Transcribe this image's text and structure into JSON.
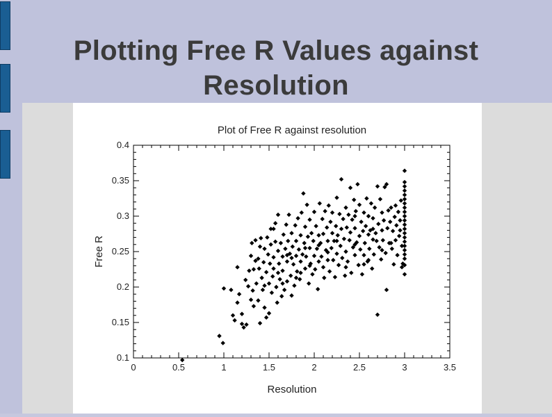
{
  "slide": {
    "title_line1": "Plotting Free R Values against",
    "title_line2": "Resolution"
  },
  "colors": {
    "background": "#bfc2dc",
    "tab": "#1a5e93",
    "title": "#3b3b3b",
    "marker": "#000000"
  },
  "chart_data": {
    "type": "scatter",
    "title": "Plot of Free R against resolution",
    "xlabel": "Resolution",
    "ylabel": "Free R",
    "xlim": [
      0,
      3.5
    ],
    "ylim": [
      0.1,
      0.4
    ],
    "xticks": [
      "0",
      "0.5",
      "1",
      "1.5",
      "2",
      "2.5",
      "3",
      "3.5"
    ],
    "yticks": [
      "0.1",
      "0.15",
      "0.2",
      "0.25",
      "0.3",
      "0.35",
      "0.4"
    ],
    "grid": false,
    "marker": "diamond",
    "series": [
      {
        "points": [
          [
            0.54,
            0.097
          ],
          [
            0.95,
            0.131
          ],
          [
            0.99,
            0.121
          ],
          [
            1.0,
            0.198
          ],
          [
            1.08,
            0.196
          ],
          [
            1.1,
            0.16
          ],
          [
            1.12,
            0.153
          ],
          [
            1.15,
            0.228
          ],
          [
            1.15,
            0.178
          ],
          [
            1.17,
            0.19
          ],
          [
            1.2,
            0.162
          ],
          [
            1.2,
            0.148
          ],
          [
            1.22,
            0.143
          ],
          [
            1.24,
            0.21
          ],
          [
            1.25,
            0.147
          ],
          [
            1.27,
            0.201
          ],
          [
            1.28,
            0.223
          ],
          [
            1.3,
            0.182
          ],
          [
            1.3,
            0.244
          ],
          [
            1.31,
            0.262
          ],
          [
            1.32,
            0.195
          ],
          [
            1.33,
            0.173
          ],
          [
            1.33,
            0.225
          ],
          [
            1.35,
            0.266
          ],
          [
            1.36,
            0.205
          ],
          [
            1.38,
            0.24
          ],
          [
            1.38,
            0.181
          ],
          [
            1.39,
            0.226
          ],
          [
            1.4,
            0.149
          ],
          [
            1.4,
            0.257
          ],
          [
            1.41,
            0.269
          ],
          [
            1.42,
            0.213
          ],
          [
            1.43,
            0.196
          ],
          [
            1.44,
            0.235
          ],
          [
            1.45,
            0.171
          ],
          [
            1.45,
            0.254
          ],
          [
            1.47,
            0.157
          ],
          [
            1.47,
            0.221
          ],
          [
            1.48,
            0.27
          ],
          [
            1.49,
            0.246
          ],
          [
            1.5,
            0.163
          ],
          [
            1.5,
            0.205
          ],
          [
            1.51,
            0.233
          ],
          [
            1.52,
            0.26
          ],
          [
            1.52,
            0.282
          ],
          [
            1.53,
            0.192
          ],
          [
            1.54,
            0.215
          ],
          [
            1.55,
            0.242
          ],
          [
            1.55,
            0.226
          ],
          [
            1.57,
            0.29
          ],
          [
            1.57,
            0.264
          ],
          [
            1.58,
            0.2
          ],
          [
            1.59,
            0.178
          ],
          [
            1.6,
            0.251
          ],
          [
            1.6,
            0.302
          ],
          [
            1.61,
            0.233
          ],
          [
            1.62,
            0.211
          ],
          [
            1.63,
            0.262
          ],
          [
            1.64,
            0.187
          ],
          [
            1.65,
            0.243
          ],
          [
            1.65,
            0.223
          ],
          [
            1.66,
            0.274
          ],
          [
            1.67,
            0.196
          ],
          [
            1.68,
            0.254
          ],
          [
            1.69,
            0.288
          ],
          [
            1.7,
            0.208
          ],
          [
            1.7,
            0.236
          ],
          [
            1.71,
            0.265
          ],
          [
            1.72,
            0.302
          ],
          [
            1.73,
            0.247
          ],
          [
            1.74,
            0.216
          ],
          [
            1.75,
            0.188
          ],
          [
            1.75,
            0.276
          ],
          [
            1.76,
            0.257
          ],
          [
            1.77,
            0.232
          ],
          [
            1.78,
            0.202
          ],
          [
            1.79,
            0.287
          ],
          [
            1.8,
            0.244
          ],
          [
            1.8,
            0.265
          ],
          [
            1.81,
            0.222
          ],
          [
            1.82,
            0.297
          ],
          [
            1.83,
            0.253
          ],
          [
            1.84,
            0.211
          ],
          [
            1.85,
            0.273
          ],
          [
            1.85,
            0.236
          ],
          [
            1.86,
            0.305
          ],
          [
            1.87,
            0.246
          ],
          [
            1.88,
            0.332
          ],
          [
            1.89,
            0.262
          ],
          [
            1.9,
            0.226
          ],
          [
            1.9,
            0.285
          ],
          [
            1.91,
            0.243
          ],
          [
            1.92,
            0.316
          ],
          [
            1.93,
            0.271
          ],
          [
            1.94,
            0.205
          ],
          [
            1.95,
            0.255
          ],
          [
            1.95,
            0.295
          ],
          [
            1.96,
            0.233
          ],
          [
            1.97,
            0.276
          ],
          [
            1.98,
            0.218
          ],
          [
            1.99,
            0.265
          ],
          [
            2.0,
            0.244
          ],
          [
            2.0,
            0.306
          ],
          [
            2.01,
            0.225
          ],
          [
            2.02,
            0.286
          ],
          [
            2.03,
            0.254
          ],
          [
            2.04,
            0.197
          ],
          [
            2.05,
            0.273
          ],
          [
            2.05,
            0.236
          ],
          [
            2.06,
            0.318
          ],
          [
            2.07,
            0.262
          ],
          [
            2.08,
            0.243
          ],
          [
            2.09,
            0.296
          ],
          [
            2.1,
            0.228
          ],
          [
            2.1,
            0.275
          ],
          [
            2.11,
            0.213
          ],
          [
            2.12,
            0.307
          ],
          [
            2.13,
            0.252
          ],
          [
            2.14,
            0.284
          ],
          [
            2.15,
            0.238
          ],
          [
            2.15,
            0.265
          ],
          [
            2.16,
            0.315
          ],
          [
            2.17,
            0.222
          ],
          [
            2.18,
            0.292
          ],
          [
            2.19,
            0.255
          ],
          [
            2.2,
            0.276
          ],
          [
            2.2,
            0.305
          ],
          [
            2.21,
            0.238
          ],
          [
            2.22,
            0.265
          ],
          [
            2.23,
            0.214
          ],
          [
            2.24,
            0.286
          ],
          [
            2.25,
            0.247
          ],
          [
            2.25,
            0.326
          ],
          [
            2.26,
            0.273
          ],
          [
            2.27,
            0.231
          ],
          [
            2.28,
            0.303
          ],
          [
            2.29,
            0.258
          ],
          [
            2.3,
            0.282
          ],
          [
            2.3,
            0.352
          ],
          [
            2.31,
            0.241
          ],
          [
            2.32,
            0.296
          ],
          [
            2.33,
            0.268
          ],
          [
            2.34,
            0.216
          ],
          [
            2.35,
            0.312
          ],
          [
            2.35,
            0.25
          ],
          [
            2.36,
            0.284
          ],
          [
            2.37,
            0.236
          ],
          [
            2.38,
            0.302
          ],
          [
            2.39,
            0.266
          ],
          [
            2.4,
            0.34
          ],
          [
            2.4,
            0.277
          ],
          [
            2.41,
            0.22
          ],
          [
            2.42,
            0.295
          ],
          [
            2.43,
            0.256
          ],
          [
            2.44,
            0.323
          ],
          [
            2.45,
            0.245
          ],
          [
            2.45,
            0.283
          ],
          [
            2.46,
            0.307
          ],
          [
            2.47,
            0.263
          ],
          [
            2.48,
            0.345
          ],
          [
            2.49,
            0.231
          ],
          [
            2.5,
            0.272
          ],
          [
            2.5,
            0.316
          ],
          [
            2.51,
            0.253
          ],
          [
            2.52,
            0.292
          ],
          [
            2.53,
            0.218
          ],
          [
            2.54,
            0.279
          ],
          [
            2.55,
            0.305
          ],
          [
            2.55,
            0.245
          ],
          [
            2.56,
            0.262
          ],
          [
            2.57,
            0.286
          ],
          [
            2.58,
            0.325
          ],
          [
            2.59,
            0.236
          ],
          [
            2.6,
            0.274
          ],
          [
            2.6,
            0.3
          ],
          [
            2.61,
            0.254
          ],
          [
            2.62,
            0.28
          ],
          [
            2.63,
            0.318
          ],
          [
            2.64,
            0.226
          ],
          [
            2.65,
            0.267
          ],
          [
            2.65,
            0.297
          ],
          [
            2.66,
            0.246
          ],
          [
            2.67,
            0.312
          ],
          [
            2.68,
            0.276
          ],
          [
            2.69,
            0.265
          ],
          [
            2.7,
            0.161
          ],
          [
            2.7,
            0.342
          ],
          [
            2.71,
            0.289
          ],
          [
            2.72,
            0.256
          ],
          [
            2.73,
            0.324
          ],
          [
            2.74,
            0.239
          ],
          [
            2.75,
            0.28
          ],
          [
            2.75,
            0.305
          ],
          [
            2.76,
            0.266
          ],
          [
            2.77,
            0.294
          ],
          [
            2.78,
            0.341
          ],
          [
            2.79,
            0.248
          ],
          [
            2.8,
            0.196
          ],
          [
            2.8,
            0.345
          ],
          [
            2.81,
            0.283
          ],
          [
            2.82,
            0.308
          ],
          [
            2.83,
            0.262
          ],
          [
            2.84,
            0.292
          ],
          [
            2.85,
            0.312
          ],
          [
            2.86,
            0.254
          ],
          [
            2.87,
            0.279
          ],
          [
            2.88,
            0.232
          ],
          [
            2.89,
            0.299
          ],
          [
            2.9,
            0.266
          ],
          [
            2.9,
            0.315
          ],
          [
            2.91,
            0.287
          ],
          [
            2.92,
            0.245
          ],
          [
            2.93,
            0.306
          ],
          [
            2.94,
            0.272
          ],
          [
            2.95,
            0.294
          ],
          [
            2.96,
            0.322
          ],
          [
            2.97,
            0.258
          ],
          [
            3.0,
            0.364
          ],
          [
            3.0,
            0.348
          ],
          [
            3.0,
            0.342
          ],
          [
            3.0,
            0.336
          ],
          [
            3.0,
            0.33
          ],
          [
            3.0,
            0.324
          ],
          [
            3.0,
            0.318
          ],
          [
            3.0,
            0.312
          ],
          [
            3.0,
            0.306
          ],
          [
            3.0,
            0.3
          ],
          [
            3.0,
            0.294
          ],
          [
            3.0,
            0.288
          ],
          [
            3.0,
            0.282
          ],
          [
            3.0,
            0.276
          ],
          [
            3.0,
            0.27
          ],
          [
            3.0,
            0.264
          ],
          [
            3.0,
            0.258
          ],
          [
            3.0,
            0.252
          ],
          [
            3.0,
            0.246
          ],
          [
            3.0,
            0.24
          ],
          [
            3.0,
            0.231
          ],
          [
            3.0,
            0.218
          ],
          [
            2.98,
            0.233
          ],
          [
            2.97,
            0.228
          ],
          [
            1.7,
            0.245
          ],
          [
            1.75,
            0.241
          ],
          [
            1.95,
            0.23
          ],
          [
            2.05,
            0.259
          ],
          [
            2.25,
            0.265
          ],
          [
            2.45,
            0.26
          ],
          [
            2.15,
            0.249
          ],
          [
            1.85,
            0.22
          ],
          [
            2.35,
            0.228
          ],
          [
            2.55,
            0.232
          ],
          [
            1.65,
            0.205
          ],
          [
            1.45,
            0.202
          ],
          [
            1.6,
            0.22
          ],
          [
            1.35,
            0.237
          ],
          [
            1.55,
            0.282
          ],
          [
            2.65,
            0.282
          ],
          [
            2.85,
            0.262
          ],
          [
            2.95,
            0.28
          ],
          [
            2.75,
            0.252
          ],
          [
            2.6,
            0.238
          ],
          [
            2.45,
            0.3
          ],
          [
            1.9,
            0.255
          ],
          [
            1.8,
            0.213
          ]
        ]
      }
    ]
  }
}
